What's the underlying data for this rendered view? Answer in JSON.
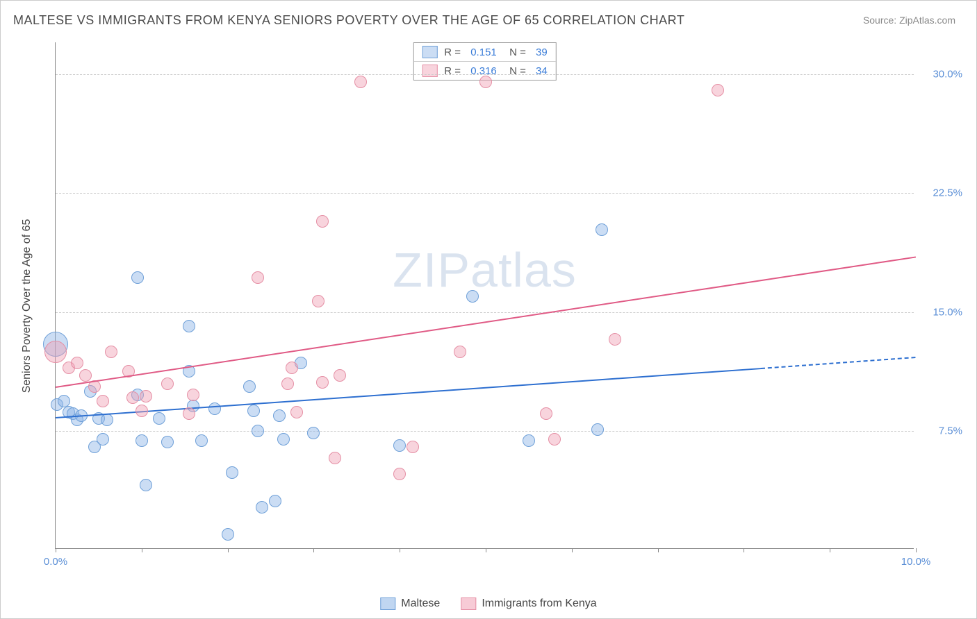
{
  "title": "MALTESE VS IMMIGRANTS FROM KENYA SENIORS POVERTY OVER THE AGE OF 65 CORRELATION CHART",
  "source": "Source: ZipAtlas.com",
  "watermark": "ZIPatlas",
  "chart": {
    "type": "scatter",
    "ylabel": "Seniors Poverty Over the Age of 65",
    "xlim": [
      0,
      10
    ],
    "ylim": [
      0,
      32
    ],
    "x_ticks": [
      0,
      1,
      2,
      3,
      4,
      5,
      6,
      7,
      8,
      9,
      10
    ],
    "x_tick_labels": {
      "0": "0.0%",
      "10": "10.0%"
    },
    "y_gridlines": [
      7.5,
      15.0,
      22.5,
      30.0
    ],
    "y_tick_labels": [
      "7.5%",
      "15.0%",
      "22.5%",
      "30.0%"
    ],
    "background_color": "#ffffff",
    "grid_color": "#cccccc",
    "tick_color": "#888888",
    "label_color": "#5b8fd6",
    "title_fontsize": 18,
    "label_fontsize": 16,
    "tick_fontsize": 15,
    "point_radius": 9,
    "series": [
      {
        "name": "Maltese",
        "fill_color": "rgba(140, 180, 230, 0.45)",
        "stroke_color": "#6fa0d8",
        "line_color": "#2d6fd0",
        "R": "0.151",
        "N": "39",
        "trend": {
          "x1": 0,
          "y1": 8.4,
          "x2": 8.2,
          "y2": 11.5,
          "dashed_from_x": 8.2,
          "x3": 10,
          "y3": 12.2
        },
        "points": [
          [
            0.0,
            13.0,
            18
          ],
          [
            0.02,
            9.2
          ],
          [
            0.1,
            9.4
          ],
          [
            0.15,
            8.7
          ],
          [
            0.2,
            8.6
          ],
          [
            0.25,
            8.2
          ],
          [
            0.3,
            8.5
          ],
          [
            0.4,
            10.0
          ],
          [
            0.45,
            6.5
          ],
          [
            0.5,
            8.3
          ],
          [
            0.55,
            7.0
          ],
          [
            0.6,
            8.2
          ],
          [
            0.95,
            17.2
          ],
          [
            0.95,
            9.8
          ],
          [
            1.0,
            6.9
          ],
          [
            1.05,
            4.1
          ],
          [
            1.2,
            8.3
          ],
          [
            1.3,
            6.8
          ],
          [
            1.55,
            14.1
          ],
          [
            1.55,
            11.3
          ],
          [
            1.6,
            9.1
          ],
          [
            1.7,
            6.9
          ],
          [
            1.85,
            8.9
          ],
          [
            2.0,
            1.0
          ],
          [
            2.05,
            4.9
          ],
          [
            2.25,
            10.3
          ],
          [
            2.3,
            8.8
          ],
          [
            2.35,
            7.5
          ],
          [
            2.4,
            2.7
          ],
          [
            2.55,
            3.1
          ],
          [
            2.6,
            8.5
          ],
          [
            2.65,
            7.0
          ],
          [
            2.85,
            11.8
          ],
          [
            3.0,
            7.4
          ],
          [
            4.0,
            6.6
          ],
          [
            4.85,
            16.0
          ],
          [
            5.5,
            6.9
          ],
          [
            6.35,
            20.2
          ],
          [
            6.3,
            7.6
          ]
        ]
      },
      {
        "name": "Immigrants from Kenya",
        "fill_color": "rgba(240, 160, 180, 0.45)",
        "stroke_color": "#e58fa5",
        "line_color": "#e05a85",
        "R": "0.316",
        "N": "34",
        "trend": {
          "x1": 0,
          "y1": 10.3,
          "x2": 10,
          "y2": 18.5
        },
        "points": [
          [
            0.0,
            12.5,
            16
          ],
          [
            0.15,
            11.5
          ],
          [
            0.25,
            11.8
          ],
          [
            0.35,
            11.0
          ],
          [
            0.45,
            10.3
          ],
          [
            0.55,
            9.4
          ],
          [
            0.65,
            12.5
          ],
          [
            0.85,
            11.3
          ],
          [
            0.9,
            9.6
          ],
          [
            1.0,
            8.8
          ],
          [
            1.05,
            9.7
          ],
          [
            1.3,
            10.5
          ],
          [
            1.55,
            8.6
          ],
          [
            1.6,
            9.8
          ],
          [
            2.35,
            17.2
          ],
          [
            2.7,
            10.5
          ],
          [
            2.75,
            11.5
          ],
          [
            2.8,
            8.7
          ],
          [
            3.05,
            15.7
          ],
          [
            3.1,
            20.7
          ],
          [
            3.1,
            10.6
          ],
          [
            3.25,
            5.8
          ],
          [
            3.3,
            11.0
          ],
          [
            3.55,
            29.5
          ],
          [
            4.0,
            4.8
          ],
          [
            4.15,
            6.5
          ],
          [
            4.7,
            12.5
          ],
          [
            5.0,
            29.5
          ],
          [
            5.7,
            8.6
          ],
          [
            5.8,
            7.0
          ],
          [
            6.5,
            13.3
          ],
          [
            7.7,
            29.0
          ]
        ]
      }
    ]
  },
  "bottom_legend": [
    {
      "label": "Maltese",
      "fill": "rgba(140,180,230,0.55)",
      "stroke": "#6fa0d8"
    },
    {
      "label": "Immigrants from Kenya",
      "fill": "rgba(240,160,180,0.55)",
      "stroke": "#e58fa5"
    }
  ]
}
